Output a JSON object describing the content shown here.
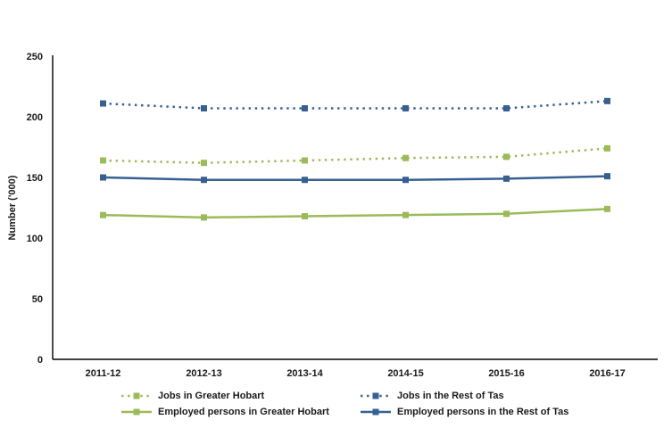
{
  "chart_data": {
    "type": "line",
    "title": "",
    "xlabel": "",
    "ylabel": "Number ('000)",
    "x_categories": [
      "2011-12",
      "2012-13",
      "2013-14",
      "2014-15",
      "2015-16",
      "2016-17"
    ],
    "ylim": [
      0,
      250
    ],
    "yticks": [
      0,
      50,
      100,
      150,
      200,
      250
    ],
    "grid": false,
    "legend_position": "bottom",
    "axis_color": "#000000",
    "series": [
      {
        "name": "Jobs in Greater Hobart",
        "color": "#9BBB59",
        "style": "dotted",
        "values": [
          164,
          162,
          164,
          166,
          167,
          174
        ]
      },
      {
        "name": "Jobs in the Rest of Tas",
        "color": "#376092",
        "style": "dotted",
        "values": [
          211,
          207,
          207,
          207,
          207,
          213
        ]
      },
      {
        "name": "Employed persons in Greater Hobart",
        "color": "#9BBB59",
        "style": "solid",
        "values": [
          119,
          117,
          118,
          119,
          120,
          124
        ]
      },
      {
        "name": "Employed persons in the Rest of Tas",
        "color": "#376092",
        "style": "solid",
        "values": [
          150,
          148,
          148,
          148,
          149,
          151
        ]
      }
    ]
  }
}
